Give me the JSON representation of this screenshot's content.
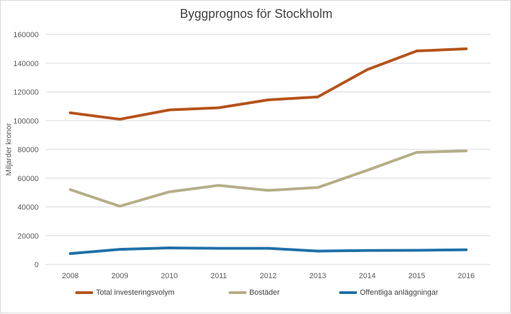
{
  "colors": {
    "total": "#b5531c",
    "bostader": "#b5ae87",
    "offentliga": "#2070a8",
    "grid": "#d9d9d9",
    "text": "#595959"
  },
  "chart_data": {
    "type": "line",
    "title": "Byggprognos för Stockholm",
    "xlabel": "",
    "ylabel": "Miljarder kronor",
    "categories": [
      "2008",
      "2009",
      "2010",
      "2011",
      "2012",
      "2013",
      "2014",
      "2015",
      "2016"
    ],
    "ylim": [
      0,
      160000
    ],
    "yticks": [
      "0",
      "20000",
      "40000",
      "60000",
      "80000",
      "100000",
      "120000",
      "140000",
      "160000"
    ],
    "grid": true,
    "legend_position": "bottom",
    "series": [
      {
        "name": "Total investeringsvolym",
        "color_key": "total",
        "values": [
          105500,
          101000,
          107500,
          109000,
          114500,
          116500,
          135500,
          148500,
          150000
        ]
      },
      {
        "name": "Bostäder",
        "color_key": "bostader",
        "values": [
          52000,
          40500,
          50500,
          55000,
          51500,
          53500,
          65500,
          78000,
          79000
        ]
      },
      {
        "name": "Offentliga anläggningar",
        "color_key": "offentliga",
        "values": [
          7500,
          10500,
          11500,
          11200,
          11200,
          9300,
          9700,
          9800,
          10200
        ]
      }
    ]
  }
}
